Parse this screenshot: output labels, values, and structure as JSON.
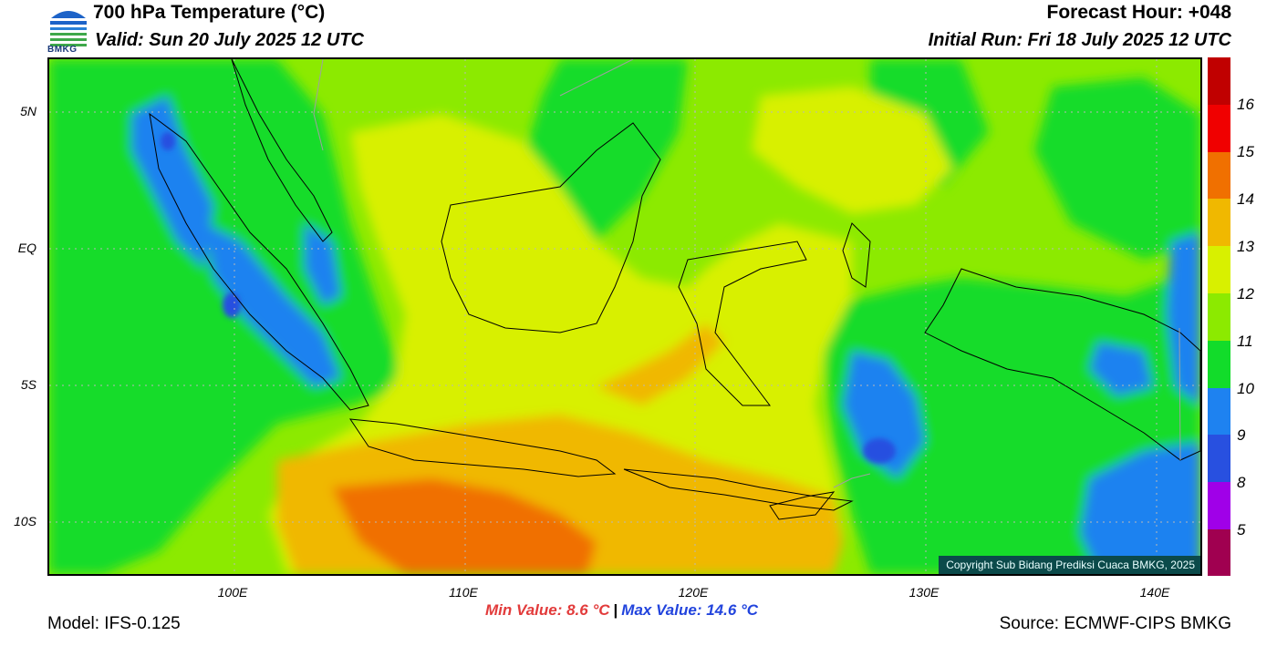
{
  "header": {
    "title": "700 hPa Temperature (°C)",
    "valid": "Valid: Sun 20 July 2025 12 UTC",
    "forecast_hour": "Forecast Hour: +048",
    "initial_run": "Initial Run: Fri 18 July 2025 12 UTC",
    "logo_text": "BMKG"
  },
  "map": {
    "copyright": "Copyright Sub Bidang Prediksi Cuaca BMKG, 2025",
    "lat_labels": [
      "5N",
      "EQ",
      "5S",
      "10S"
    ],
    "lon_labels": [
      "100E",
      "110E",
      "120E",
      "130E",
      "140E"
    ]
  },
  "colorbar": {
    "labels": [
      "16",
      "15",
      "14",
      "13",
      "12",
      "11",
      "10",
      "9",
      "8",
      "5"
    ],
    "colors": [
      "#c00000",
      "#f00000",
      "#f07000",
      "#f0b800",
      "#d8f000",
      "#8cea00",
      "#12dc2a",
      "#1e82f0",
      "#2850e0",
      "#a000e8",
      "#a00050"
    ]
  },
  "footer": {
    "min_value": "Min Value: 8.6 °C",
    "max_value": "Max Value: 14.6 °C",
    "separator": "|",
    "model": "Model: IFS-0.125",
    "source": "Source: ECMWF-CIPS BMKG"
  }
}
